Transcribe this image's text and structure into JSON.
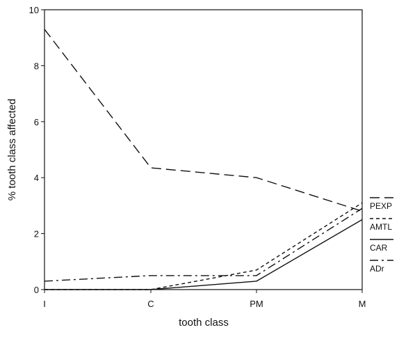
{
  "chart_data": {
    "type": "line",
    "title": "",
    "xlabel": "tooth class",
    "ylabel": "% tooth class affected",
    "categories": [
      "I",
      "C",
      "PM",
      "M"
    ],
    "ylim": [
      0,
      10
    ],
    "yticks": [
      0,
      2,
      4,
      6,
      8,
      10
    ],
    "grid": false,
    "legend_position": "right",
    "series": [
      {
        "name": "PEXP",
        "values": [
          9.3,
          4.35,
          4.0,
          2.8
        ],
        "dash": "long-dash",
        "color": "#111111"
      },
      {
        "name": "AMTL",
        "values": [
          0.0,
          0.0,
          0.7,
          3.1
        ],
        "dash": "short-dash",
        "color": "#111111"
      },
      {
        "name": "CAR",
        "values": [
          0.0,
          0.0,
          0.3,
          2.5
        ],
        "dash": "solid",
        "color": "#111111"
      },
      {
        "name": "ADr",
        "values": [
          0.3,
          0.5,
          0.5,
          2.9
        ],
        "dash": "dash-dot",
        "color": "#111111"
      }
    ]
  }
}
